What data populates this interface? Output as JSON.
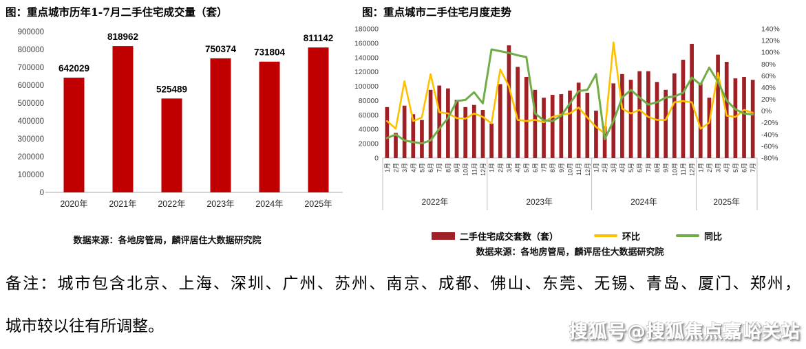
{
  "page": {
    "note_line1": "备注：城市包含北京、上海、深圳、广州、苏州、南京、成都、佛山、东莞、无锡、青岛、厦门、郑州，",
    "note_line2": "城市较以往有所调整。",
    "watermark": "搜狐号@搜狐焦点嘉峪关站"
  },
  "chart_data": [
    {
      "type": "bar",
      "title": "图：重点城市历年1-7月二手住宅成交量（套）",
      "source": "数据来源：各地房管局，麟评居住大数据研究院",
      "categories": [
        "2020年",
        "2021年",
        "2022年",
        "2023年",
        "2024年",
        "2025年"
      ],
      "values": [
        642029,
        818962,
        525489,
        750374,
        731804,
        811142
      ],
      "ylim": [
        0,
        900000
      ],
      "ytick_step": 100000,
      "bar_color": "#c00000",
      "data_labels": true,
      "grid": false,
      "legend": false
    },
    {
      "type": "combo-bar-line",
      "title": "图：重点城市二手住宅月度走势",
      "source": "数据来源：各地房管局，麟评居住大数据研究院",
      "x_month_labels": [
        "1月",
        "2月",
        "3月",
        "4月",
        "5月",
        "6月",
        "7月",
        "8月",
        "9月",
        "10月",
        "11月",
        "12月",
        "1月",
        "2月",
        "3月",
        "4月",
        "5月",
        "6月",
        "7月",
        "8月",
        "9月",
        "10月",
        "11月",
        "12月",
        "1月",
        "2月",
        "3月",
        "4月",
        "5月",
        "6月",
        "7月",
        "8月",
        "9月",
        "10月",
        "11月",
        "12月",
        "1月",
        "2月",
        "3月",
        "4月",
        "5月",
        "6月",
        "7月"
      ],
      "year_groups": [
        {
          "label": "2022年",
          "months": 12
        },
        {
          "label": "2023年",
          "months": 12
        },
        {
          "label": "2024年",
          "months": 12
        },
        {
          "label": "2025年",
          "months": 7
        }
      ],
      "left_axis": {
        "min": 0,
        "max": 180000,
        "step": 20000
      },
      "right_axis": {
        "min": -80,
        "max": 140,
        "step": 20,
        "unit": "%"
      },
      "grid": false,
      "legend_position": "bottom",
      "series": [
        {
          "name": "二手住宅成交套数（套）",
          "type": "bar",
          "axis": "left",
          "color": "#a02125",
          "values": [
            71000,
            35000,
            73000,
            61000,
            53000,
            95000,
            101000,
            97000,
            81000,
            71000,
            74000,
            67000,
            48000,
            103000,
            157000,
            127000,
            113000,
            95000,
            84000,
            88000,
            89000,
            94000,
            105000,
            91000,
            66000,
            44000,
            104000,
            117000,
            109000,
            121000,
            121000,
            106000,
            95000,
            118000,
            137000,
            159000,
            104000,
            84000,
            144000,
            134000,
            111000,
            113000,
            109000
          ]
        },
        {
          "name": "环比",
          "type": "line",
          "axis": "right",
          "color": "#ffc000",
          "values": [
            -17,
            -30,
            51,
            -17,
            -11,
            63,
            -2,
            -4,
            -12,
            -13,
            -4,
            -10,
            -21,
            71,
            42,
            -15,
            -17,
            -15,
            -19,
            -10,
            -6,
            -4,
            6,
            -11,
            -27,
            -38,
            117,
            4,
            -4,
            2,
            -10,
            -15,
            -15,
            15,
            17,
            15,
            -30,
            -20,
            65,
            -8,
            -10,
            2,
            -3
          ]
        },
        {
          "name": "同比",
          "type": "line",
          "axis": "right",
          "color": "#70ad47",
          "values": [
            -46,
            -40,
            -50,
            -53,
            -55,
            -50,
            -30,
            -12,
            17,
            19,
            32,
            13,
            105,
            102,
            99,
            95,
            92,
            -4,
            -16,
            -17,
            -8,
            13,
            34,
            36,
            63,
            -48,
            -17,
            23,
            36,
            23,
            11,
            15,
            23,
            25,
            31,
            57,
            45,
            74,
            50,
            18,
            3,
            -4,
            -6
          ]
        }
      ]
    }
  ]
}
